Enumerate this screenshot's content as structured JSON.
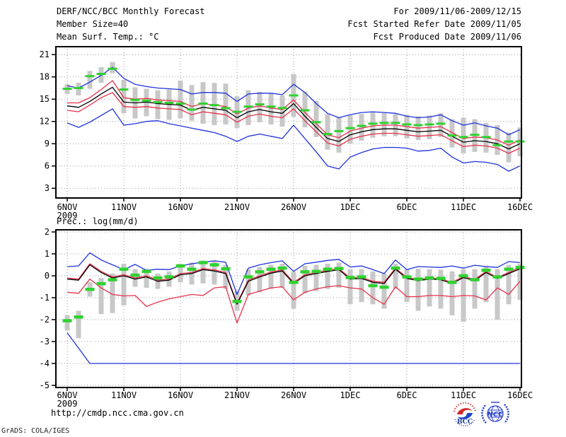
{
  "header": {
    "title": "DERF/NCC/BCC Monthly Forecast",
    "member_size": "Member Size=40",
    "top_chart_label": "Mean Surf. Temp.: °C",
    "valid_range": "For 2009/11/06-2009/12/15",
    "refer_date": "Fcst Started Refer Date 2009/11/05",
    "produced_date": "Fcst Produced Date 2009/11/06"
  },
  "footer": {
    "url": "http://cmdp.ncc.cma.gov.cn",
    "grads_credit": "GrADS: COLA/IGES"
  },
  "logos": {
    "bcc_label": "BCC",
    "ncc_label": "NCC"
  },
  "colors": {
    "ensemble_minmax": "#1e32dc",
    "quartile": "#e6324b",
    "ensemble_mean": "#000000",
    "highlight_dash": "#2ed22e",
    "spread_bar": "#c8c8c8",
    "grid": "#999999",
    "frame": "#000000"
  },
  "chart_data": [
    {
      "type": "line",
      "title": "Mean Surf. Temp.: °C",
      "ylabel": "degC",
      "ylim": [
        1.8,
        22.1
      ],
      "yticks": [
        21,
        18,
        15,
        12,
        9,
        6,
        3
      ],
      "x_tick_days": [
        0,
        5,
        10,
        15,
        20,
        25,
        30,
        35,
        40
      ],
      "x_tick_labels": [
        "6NOV",
        "11NOV",
        "16NOV",
        "21NOV",
        "26NOV",
        "1DEC",
        "6DEC",
        "11DEC",
        "16DEC"
      ],
      "x_year_label": "2009",
      "n_days": 41,
      "grid": "dotted",
      "legend_position": "none",
      "bars": {
        "name": "ensemble-spread-bar",
        "hi": [
          17.0,
          17.2,
          18.8,
          19.3,
          20.0,
          17.6,
          16.6,
          16.4,
          16.2,
          16.3,
          17.5,
          16.9,
          17.3,
          17.2,
          17.1,
          15.4,
          16.2,
          16.0,
          15.8,
          15.5,
          18.4,
          16.0,
          14.8,
          13.0,
          12.6,
          12.8,
          13.0,
          13.3,
          13.1,
          13.0,
          12.9,
          12.7,
          12.8,
          13.1,
          12.3,
          12.5,
          12.3,
          11.8,
          11.5,
          10.5,
          11.2
        ],
        "lo": [
          15.7,
          15.5,
          16.4,
          17.2,
          18.5,
          13.1,
          12.4,
          12.7,
          12.3,
          12.2,
          12.4,
          12.1,
          11.7,
          11.5,
          11.6,
          11.1,
          11.5,
          11.9,
          11.6,
          11.3,
          12.6,
          11.2,
          9.9,
          8.2,
          7.8,
          9.0,
          9.4,
          9.8,
          10.0,
          10.0,
          9.7,
          9.5,
          9.6,
          9.9,
          8.5,
          7.7,
          7.9,
          7.8,
          7.5,
          6.5,
          7.3
        ]
      },
      "series": [
        {
          "name": "ensemble-max",
          "color_key": "ensemble_minmax",
          "values": [
            16.8,
            16.5,
            17.3,
            18.2,
            19.3,
            17.8,
            17.0,
            16.7,
            16.5,
            16.4,
            16.3,
            15.7,
            15.9,
            15.9,
            15.8,
            14.7,
            15.7,
            15.8,
            15.8,
            15.6,
            17.0,
            15.9,
            14.4,
            13.1,
            12.5,
            12.9,
            13.2,
            13.3,
            13.2,
            13.1,
            12.7,
            12.5,
            12.6,
            12.9,
            12.1,
            11.5,
            11.8,
            11.4,
            11.1,
            10.2,
            10.9
          ]
        },
        {
          "name": "upper-quartile",
          "color_key": "quartile",
          "values": [
            14.5,
            14.5,
            15.2,
            16.3,
            17.5,
            15.2,
            15.0,
            15.1,
            14.9,
            14.8,
            14.7,
            14.0,
            14.4,
            14.2,
            14.0,
            13.0,
            13.8,
            14.1,
            13.8,
            13.6,
            14.9,
            13.2,
            11.7,
            10.2,
            9.8,
            10.7,
            11.1,
            11.4,
            11.5,
            11.5,
            11.3,
            11.1,
            11.2,
            11.3,
            10.5,
            9.7,
            9.9,
            9.8,
            9.5,
            8.8,
            9.5
          ]
        },
        {
          "name": "ensemble-mean",
          "color_key": "ensemble_mean",
          "values": [
            14.1,
            13.9,
            14.7,
            15.7,
            16.6,
            14.6,
            14.5,
            14.6,
            14.4,
            14.3,
            14.2,
            13.5,
            13.9,
            13.7,
            13.5,
            12.5,
            13.3,
            13.6,
            13.3,
            13.1,
            14.4,
            12.7,
            11.2,
            9.7,
            9.3,
            10.2,
            10.6,
            10.9,
            11.0,
            11.0,
            10.8,
            10.6,
            10.7,
            10.8,
            10.0,
            9.2,
            9.4,
            9.3,
            9.0,
            8.3,
            9.0
          ]
        },
        {
          "name": "lower-quartile",
          "color_key": "quartile",
          "values": [
            13.5,
            13.3,
            14.2,
            15.2,
            15.9,
            14.0,
            13.9,
            14.0,
            13.8,
            13.7,
            13.6,
            12.9,
            13.3,
            13.1,
            12.9,
            11.9,
            12.7,
            13.0,
            12.7,
            12.5,
            13.7,
            12.1,
            10.6,
            9.1,
            8.7,
            9.6,
            10.0,
            10.3,
            10.4,
            10.4,
            10.2,
            10.0,
            10.1,
            10.2,
            9.4,
            8.6,
            8.8,
            8.7,
            8.4,
            7.7,
            8.4
          ]
        },
        {
          "name": "ensemble-min",
          "color_key": "ensemble_minmax",
          "values": [
            11.8,
            11.2,
            11.9,
            12.8,
            13.7,
            11.5,
            11.7,
            12.0,
            12.1,
            11.7,
            11.4,
            11.1,
            10.8,
            10.5,
            10.0,
            9.3,
            10.0,
            10.3,
            10.0,
            9.7,
            11.5,
            9.7,
            7.9,
            6.0,
            5.6,
            7.2,
            7.8,
            8.3,
            8.5,
            8.5,
            8.4,
            8.0,
            8.1,
            8.4,
            7.2,
            6.4,
            6.6,
            6.5,
            6.2,
            5.3,
            6.0
          ]
        }
      ],
      "highlight": {
        "name": "best-estimate-dash",
        "color_key": "highlight_dash",
        "values": [
          16.4,
          16.5,
          18.1,
          18.4,
          19.1,
          16.3,
          14.9,
          14.8,
          14.6,
          14.5,
          14.4,
          13.6,
          14.4,
          14.2,
          13.8,
          13.3,
          14.0,
          14.3,
          14.0,
          13.8,
          15.5,
          13.5,
          11.9,
          10.3,
          10.7,
          11.1,
          11.4,
          11.7,
          11.8,
          11.8,
          11.6,
          11.5,
          11.6,
          11.7,
          10.1,
          9.9,
          10.2,
          9.9,
          8.8,
          9.3,
          9.3
        ]
      }
    },
    {
      "type": "line",
      "title": "Prec.: log(mm/d)",
      "ylabel": "log(mm/d)",
      "ylim": [
        -5.2,
        2.1
      ],
      "yticks": [
        2,
        1,
        0,
        -1,
        -2,
        -3,
        -4,
        -5
      ],
      "x_tick_days": [
        0,
        5,
        10,
        15,
        20,
        25,
        30,
        35,
        40
      ],
      "x_tick_labels": [
        "6NOV",
        "11NOV",
        "16NOV",
        "21NOV",
        "26NOV",
        "1DEC",
        "6DEC",
        "11DEC",
        "16DEC"
      ],
      "x_year_label": "2009",
      "n_days": 41,
      "grid": "dotted",
      "legend_position": "none",
      "bars": {
        "name": "ensemble-spread-bar",
        "hi": [
          -1.8,
          -1.6,
          -0.3,
          -0.1,
          0.1,
          0.55,
          0.3,
          0.32,
          0.1,
          0.2,
          0.55,
          0.6,
          0.7,
          0.68,
          0.5,
          -0.7,
          0.3,
          0.4,
          0.5,
          0.55,
          0.18,
          0.45,
          0.5,
          0.55,
          0.6,
          0.3,
          0.3,
          0.2,
          0.1,
          0.55,
          0.3,
          0.32,
          0.3,
          0.28,
          0.2,
          0.3,
          0.3,
          0.45,
          0.3,
          0.5,
          0.55
        ],
        "lo": [
          -2.5,
          -2.85,
          -0.95,
          -1.75,
          -1.7,
          -1.35,
          -0.5,
          -0.55,
          -0.6,
          -0.5,
          -0.3,
          -0.4,
          -0.35,
          -0.4,
          -0.6,
          -1.6,
          -0.9,
          -0.75,
          -0.6,
          -0.55,
          -1.5,
          -0.8,
          -0.7,
          -0.6,
          -0.55,
          -1.3,
          -1.2,
          -1.3,
          -1.5,
          -0.6,
          -1.2,
          -1.6,
          -1.4,
          -1.5,
          -1.8,
          -2.1,
          -1.5,
          -1.2,
          -2.0,
          -1.3,
          -1.1
        ]
      },
      "series": [
        {
          "name": "ensemble-max",
          "color_key": "ensemble_minmax",
          "values": [
            0.42,
            0.45,
            1.05,
            0.72,
            0.5,
            0.28,
            0.52,
            0.25,
            0.3,
            0.28,
            0.45,
            0.55,
            0.62,
            0.68,
            0.62,
            -0.85,
            0.35,
            0.5,
            0.6,
            0.68,
            0.2,
            0.55,
            0.62,
            0.7,
            0.75,
            0.4,
            0.45,
            0.28,
            0.1,
            0.72,
            0.28,
            0.42,
            0.4,
            0.38,
            0.45,
            0.35,
            0.48,
            0.42,
            0.38,
            0.65,
            0.6
          ]
        },
        {
          "name": "upper-quartile",
          "color_key": "quartile",
          "values": [
            -0.1,
            -0.15,
            0.55,
            0.2,
            -0.05,
            0.05,
            -0.1,
            0.0,
            -0.2,
            -0.15,
            0.1,
            0.15,
            0.33,
            0.27,
            0.15,
            -1.25,
            -0.2,
            0.0,
            0.17,
            0.27,
            -0.3,
            0.05,
            0.15,
            0.25,
            0.33,
            -0.1,
            -0.07,
            -0.25,
            -0.3,
            0.35,
            -0.07,
            -0.17,
            -0.1,
            -0.13,
            -0.3,
            -0.03,
            -0.17,
            0.2,
            -0.07,
            0.15,
            0.37
          ]
        },
        {
          "name": "ensemble-mean",
          "color_key": "ensemble_mean",
          "values": [
            -0.15,
            -0.2,
            0.5,
            0.15,
            -0.1,
            0.0,
            -0.15,
            -0.05,
            -0.25,
            -0.2,
            0.05,
            0.1,
            0.28,
            0.22,
            0.1,
            -1.3,
            -0.25,
            -0.05,
            0.12,
            0.22,
            -0.35,
            0.0,
            0.1,
            0.2,
            0.28,
            -0.15,
            -0.12,
            -0.3,
            -0.35,
            0.3,
            -0.12,
            -0.22,
            -0.15,
            -0.18,
            -0.35,
            -0.08,
            -0.22,
            0.15,
            -0.12,
            0.1,
            0.32
          ]
        },
        {
          "name": "lower-quartile",
          "color_key": "quartile",
          "values": [
            -0.75,
            -0.8,
            -0.15,
            -0.55,
            -0.85,
            -0.92,
            -0.9,
            -1.4,
            -1.2,
            -1.05,
            -0.95,
            -0.85,
            -0.9,
            -0.55,
            -0.5,
            -2.15,
            -0.85,
            -0.7,
            -0.55,
            -0.5,
            -1.1,
            -0.75,
            -0.6,
            -0.5,
            -0.45,
            -0.55,
            -0.6,
            -1.0,
            -1.3,
            -0.5,
            -0.95,
            -0.95,
            -0.9,
            -0.9,
            -0.95,
            -0.9,
            -0.92,
            -1.1,
            -0.55,
            -0.85,
            -0.25
          ]
        },
        {
          "name": "ensemble-min",
          "color_key": "ensemble_minmax",
          "values": [
            -2.6,
            -3.3,
            -4,
            -4,
            -4,
            -4,
            -4,
            -4,
            -4,
            -4,
            -4,
            -4,
            -4,
            -4,
            -4,
            -4,
            -4,
            -4,
            -4,
            -4,
            -4,
            -4,
            -4,
            -4,
            -4,
            -4,
            -4,
            -4,
            -4,
            -4,
            -4,
            -4,
            -4,
            -4,
            -4,
            -4,
            -4,
            -4,
            -4,
            -4,
            -4
          ]
        }
      ],
      "highlight": {
        "name": "best-estimate-dash",
        "color_key": "highlight_dash",
        "values": [
          -2.05,
          -1.88,
          -0.62,
          -0.36,
          -0.18,
          0.3,
          0.03,
          0.2,
          -0.1,
          -0.05,
          0.45,
          0.3,
          0.6,
          0.5,
          0.32,
          -1.17,
          -0.05,
          0.18,
          0.3,
          0.35,
          -0.3,
          0.18,
          0.2,
          0.3,
          0.33,
          -0.08,
          -0.05,
          -0.45,
          -0.52,
          0.35,
          -0.05,
          -0.15,
          -0.1,
          -0.12,
          -0.3,
          0.0,
          -0.18,
          0.25,
          -0.05,
          0.3,
          0.38
        ]
      }
    }
  ]
}
